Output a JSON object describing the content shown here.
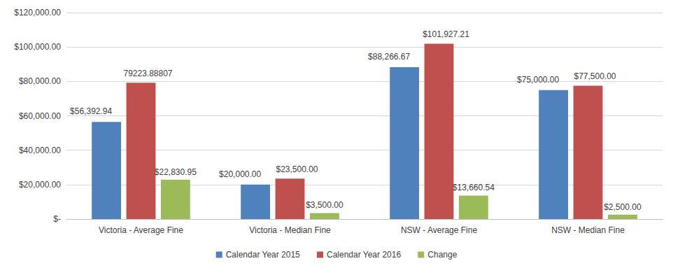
{
  "chart_data": {
    "type": "bar",
    "categories": [
      "Victoria - Average Fine",
      "Victoria - Median Fine",
      "NSW - Average Fine",
      "NSW - Median Fine"
    ],
    "series": [
      {
        "name": "Calendar Year 2015",
        "color": "#4f81bd",
        "values": [
          56392.94,
          20000,
          88266.67,
          75000
        ],
        "value_labels": [
          "$56,392.94",
          "$20,000.00",
          "$88,266.67",
          "$75,000.00"
        ]
      },
      {
        "name": "Calendar Year 2016",
        "color": "#c0504d",
        "values": [
          79223.88807,
          23500,
          101927.21,
          77500
        ],
        "value_labels": [
          "79223.88807",
          "$23,500.00",
          "$101,927.21",
          "$77,500.00"
        ]
      },
      {
        "name": "Change",
        "color": "#9bbb59",
        "values": [
          22830.95,
          3500,
          13660.54,
          2500
        ],
        "value_labels": [
          "$22,830.95",
          "$3,500.00",
          "$13,660.54",
          "$2,500.00"
        ]
      }
    ],
    "ylim": [
      0,
      120000
    ],
    "yticks": [
      {
        "value": 0,
        "label": "$-"
      },
      {
        "value": 20000,
        "label": "$20,000.00"
      },
      {
        "value": 40000,
        "label": "$40,000.00"
      },
      {
        "value": 60000,
        "label": "$60,000.00"
      },
      {
        "value": 80000,
        "label": "$80,000.00"
      },
      {
        "value": 100000,
        "label": "$100,000.00"
      },
      {
        "value": 120000,
        "label": "$120,000.00"
      }
    ],
    "grid": true,
    "legend": "bottom",
    "data_labels": true
  }
}
